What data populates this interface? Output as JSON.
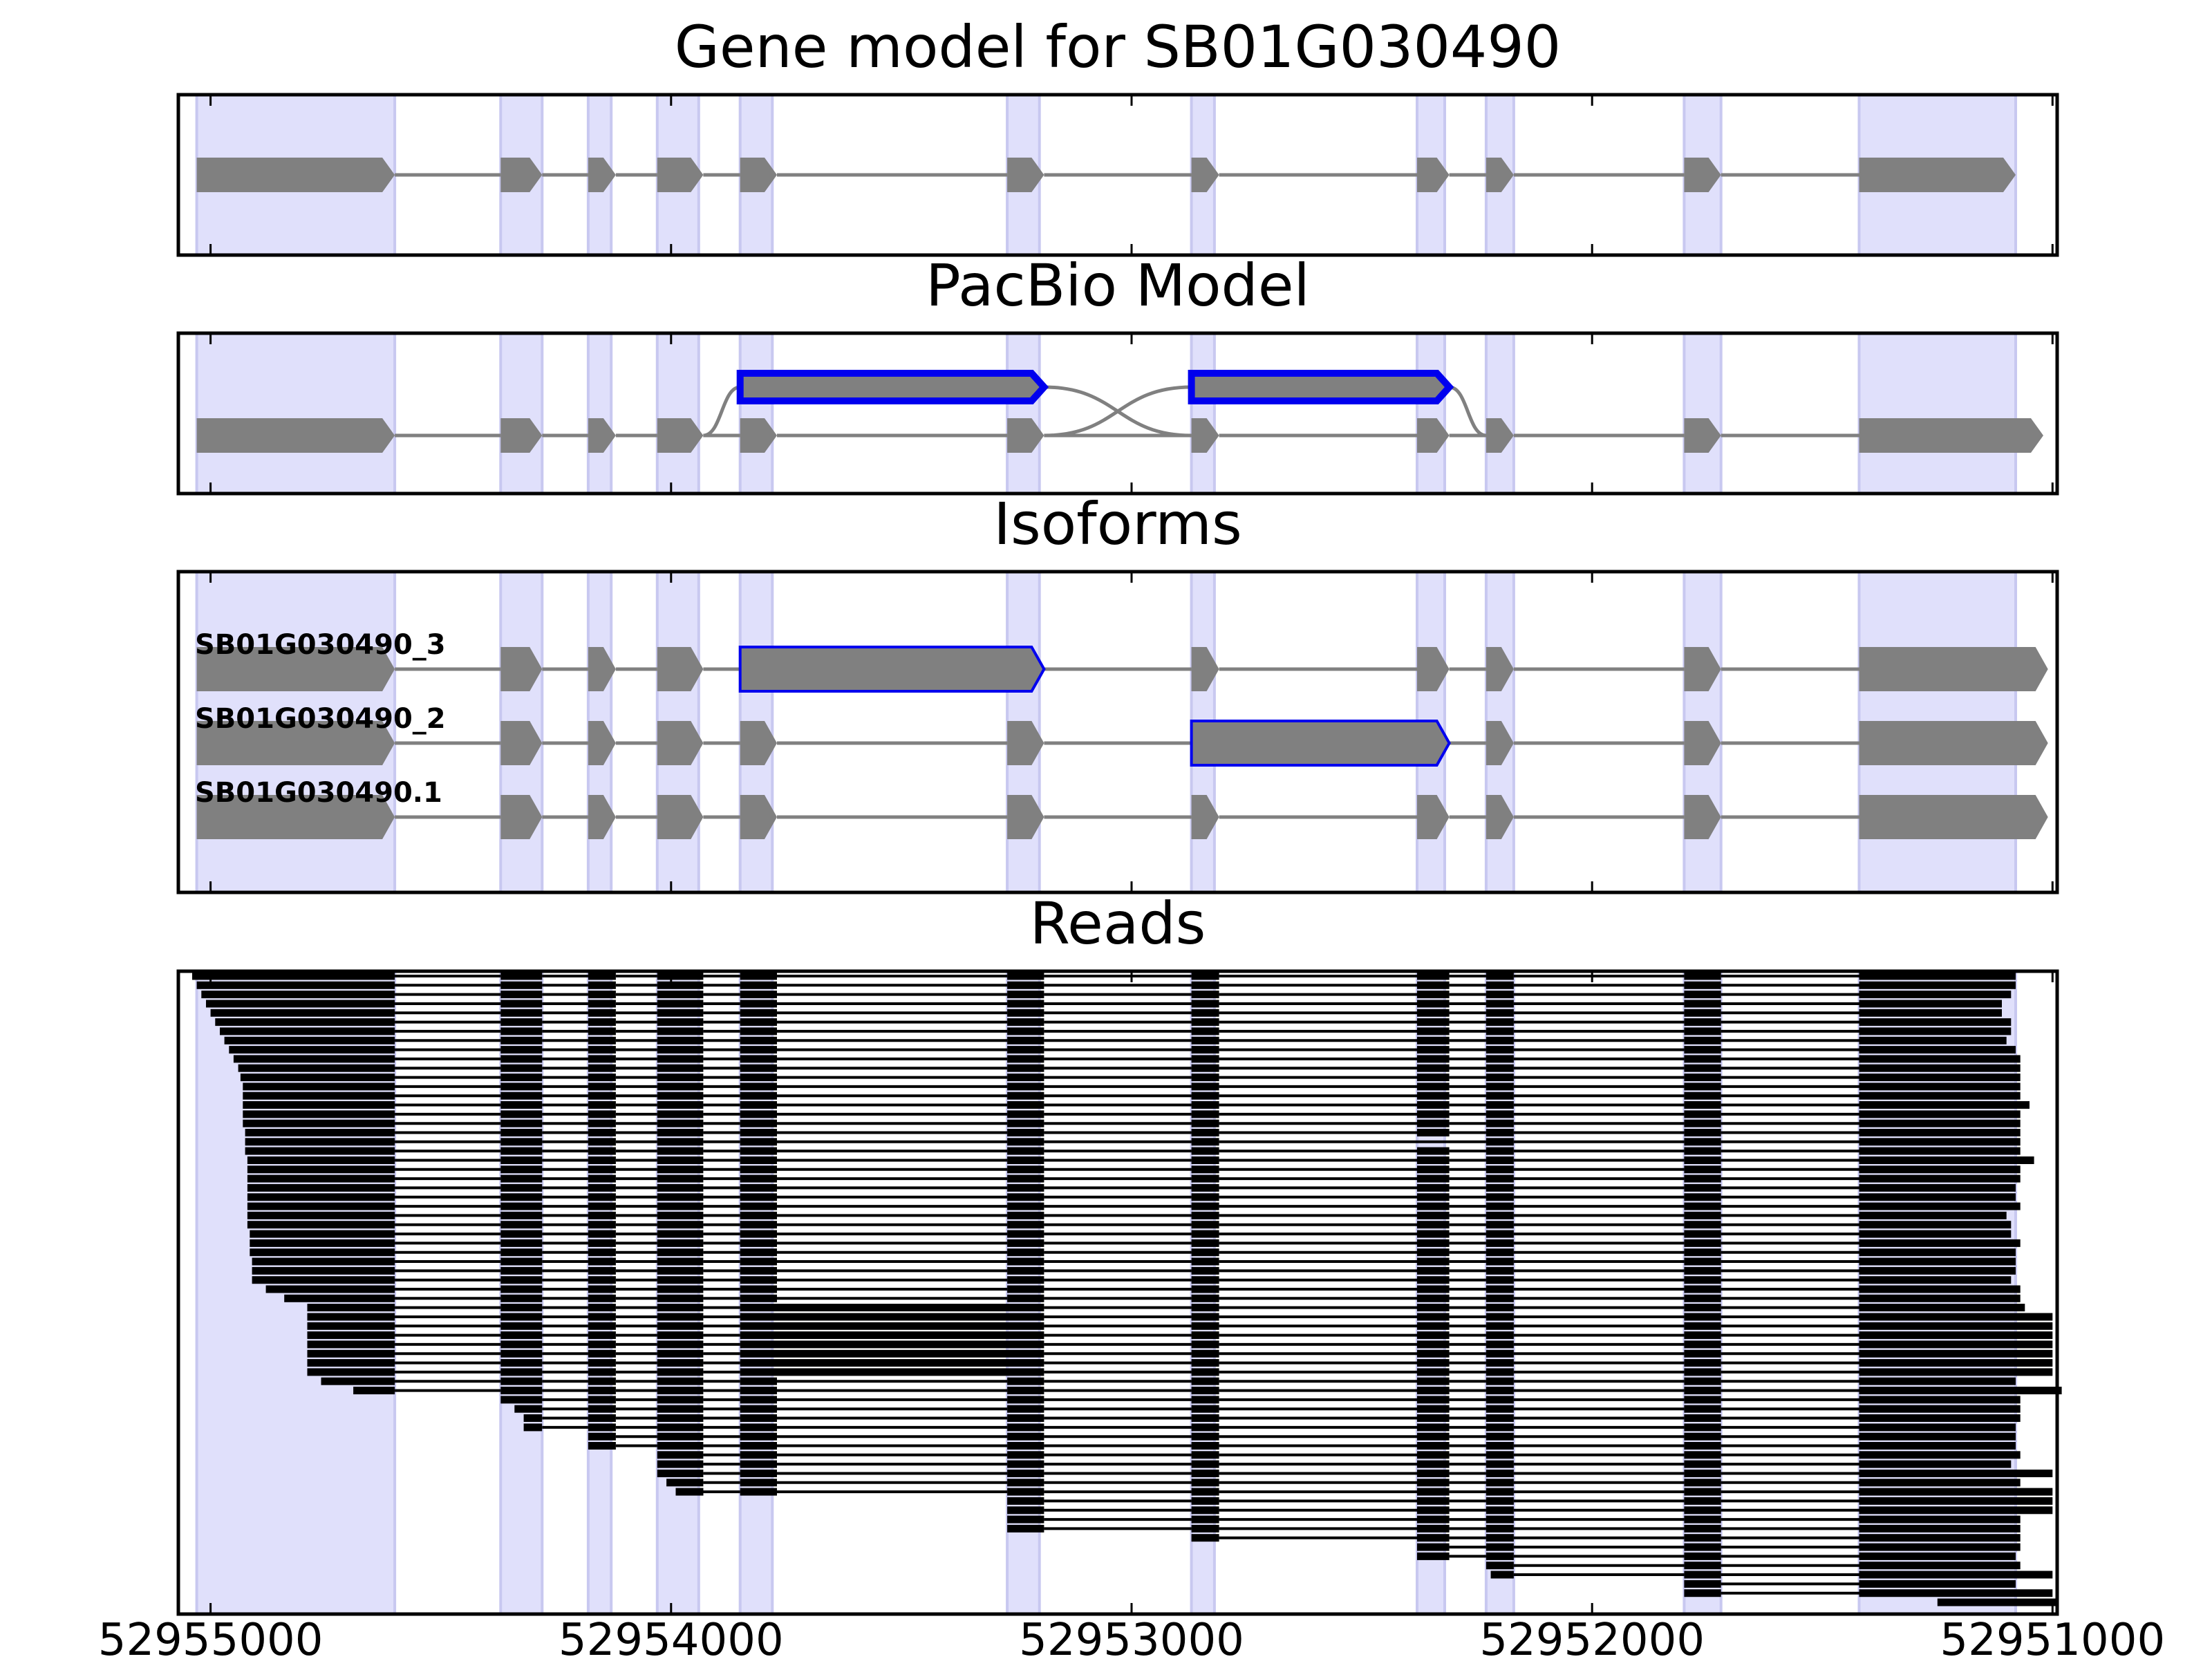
{
  "chart_data": {
    "type": "gene-structure",
    "axis": {
      "reversed": true,
      "xlim": [
        52955070,
        52950990
      ],
      "ticks": [
        52955000,
        52954000,
        52953000,
        52952000,
        52951000
      ],
      "tick_labels": [
        "52955000",
        "52954000",
        "52953000",
        "52952000",
        "52951000"
      ]
    },
    "shaded_exons": [
      [
        52955030,
        52954600
      ],
      [
        52954370,
        52954280
      ],
      [
        52954180,
        52954130
      ],
      [
        52954030,
        52953940
      ],
      [
        52953850,
        52953780
      ],
      [
        52953270,
        52953200
      ],
      [
        52952870,
        52952820
      ],
      [
        52952380,
        52952320
      ],
      [
        52952230,
        52952170
      ],
      [
        52951800,
        52951720
      ],
      [
        52951420,
        52951080
      ]
    ],
    "panels": [
      {
        "title": "Gene model for SB01G030490",
        "rows": [
          {
            "label": "",
            "exons": [
              [
                52955030,
                52954600,
                "n"
              ],
              [
                52954370,
                52954280,
                "n"
              ],
              [
                52954180,
                52954120,
                "n"
              ],
              [
                52954030,
                52953930,
                "n"
              ],
              [
                52953850,
                52953770,
                "n"
              ],
              [
                52953270,
                52953190,
                "n"
              ],
              [
                52952870,
                52952810,
                "n"
              ],
              [
                52952380,
                52952310,
                "n"
              ],
              [
                52952230,
                52952170,
                "n"
              ],
              [
                52951800,
                52951720,
                "n"
              ],
              [
                52951420,
                52951080,
                "n"
              ]
            ]
          }
        ]
      },
      {
        "title": "PacBio Model",
        "rows": [
          {
            "label": "",
            "exons": [
              [
                52955030,
                52954600,
                "n"
              ],
              [
                52954370,
                52954280,
                "n"
              ],
              [
                52954180,
                52954120,
                "n"
              ],
              [
                52954030,
                52953930,
                "n"
              ],
              [
                52953850,
                52953770,
                "n"
              ],
              [
                52953270,
                52953190,
                "n"
              ],
              [
                52952870,
                52952810,
                "n"
              ],
              [
                52952380,
                52952310,
                "n"
              ],
              [
                52952230,
                52952170,
                "n"
              ],
              [
                52951800,
                52951720,
                "n"
              ],
              [
                52951420,
                52951020,
                "n"
              ]
            ]
          }
        ],
        "alt_exons": [
          [
            52953850,
            52953190
          ],
          [
            52952870,
            52952310
          ]
        ]
      },
      {
        "title": "Isoforms",
        "rows": [
          {
            "label": "SB01G030490_3",
            "exons": [
              [
                52955030,
                52954600,
                "n"
              ],
              [
                52954370,
                52954280,
                "n"
              ],
              [
                52954180,
                52954120,
                "n"
              ],
              [
                52954030,
                52953930,
                "n"
              ],
              [
                52953850,
                52953190,
                "h"
              ],
              [
                52952870,
                52952810,
                "n"
              ],
              [
                52952380,
                52952310,
                "n"
              ],
              [
                52952230,
                52952170,
                "n"
              ],
              [
                52951800,
                52951720,
                "n"
              ],
              [
                52951420,
                52951010,
                "n"
              ]
            ]
          },
          {
            "label": "SB01G030490_2",
            "exons": [
              [
                52955030,
                52954600,
                "n"
              ],
              [
                52954370,
                52954280,
                "n"
              ],
              [
                52954180,
                52954120,
                "n"
              ],
              [
                52954030,
                52953930,
                "n"
              ],
              [
                52953850,
                52953770,
                "n"
              ],
              [
                52953270,
                52953190,
                "n"
              ],
              [
                52952870,
                52952310,
                "h"
              ],
              [
                52952230,
                52952170,
                "n"
              ],
              [
                52951800,
                52951720,
                "n"
              ],
              [
                52951420,
                52951010,
                "n"
              ]
            ]
          },
          {
            "label": "SB01G030490.1",
            "exons": [
              [
                52955030,
                52954600,
                "n"
              ],
              [
                52954370,
                52954280,
                "n"
              ],
              [
                52954180,
                52954120,
                "n"
              ],
              [
                52954030,
                52953930,
                "n"
              ],
              [
                52953850,
                52953770,
                "n"
              ],
              [
                52953270,
                52953190,
                "n"
              ],
              [
                52952870,
                52952810,
                "n"
              ],
              [
                52952380,
                52952310,
                "n"
              ],
              [
                52952230,
                52952170,
                "n"
              ],
              [
                52951800,
                52951720,
                "n"
              ],
              [
                52951420,
                52951010,
                "n"
              ]
            ]
          }
        ]
      },
      {
        "title": "Reads",
        "read_exons": [
          [
            52955030,
            52954600
          ],
          [
            52954370,
            52954280
          ],
          [
            52954180,
            52954120
          ],
          [
            52954030,
            52953930
          ],
          [
            52953850,
            52953770
          ],
          [
            52953270,
            52953190
          ],
          [
            52952870,
            52952810
          ],
          [
            52952380,
            52952310
          ],
          [
            52952230,
            52952170
          ],
          [
            52951800,
            52951720
          ],
          [
            52951420,
            52951080
          ]
        ],
        "reads": [
          {
            "start": 52955040,
            "end": 52951080,
            "skip": ""
          },
          {
            "start": 52955030,
            "end": 52951080,
            "skip": ""
          },
          {
            "start": 52955020,
            "end": 52951090,
            "skip": ""
          },
          {
            "start": 52955010,
            "end": 52951110,
            "skip": ""
          },
          {
            "start": 52955000,
            "end": 52951110,
            "skip": ""
          },
          {
            "start": 52954990,
            "end": 52951090,
            "skip": ""
          },
          {
            "start": 52954980,
            "end": 52951090,
            "skip": ""
          },
          {
            "start": 52954970,
            "end": 52951100,
            "skip": ""
          },
          {
            "start": 52954960,
            "end": 52951080,
            "skip": ""
          },
          {
            "start": 52954950,
            "end": 52951070,
            "skip": ""
          },
          {
            "start": 52954940,
            "end": 52951070,
            "skip": ""
          },
          {
            "start": 52954935,
            "end": 52951070,
            "skip": ""
          },
          {
            "start": 52954930,
            "end": 52951070,
            "skip": ""
          },
          {
            "start": 52954930,
            "end": 52951070,
            "skip": ""
          },
          {
            "start": 52954930,
            "end": 52951050,
            "skip": ""
          },
          {
            "start": 52954930,
            "end": 52951070,
            "skip": ""
          },
          {
            "start": 52954930,
            "end": 52951070,
            "skip": ""
          },
          {
            "start": 52954925,
            "end": 52951070,
            "skip": ""
          },
          {
            "start": 52954925,
            "end": 52951070,
            "skip": "b"
          },
          {
            "start": 52954925,
            "end": 52951070,
            "skip": ""
          },
          {
            "start": 52954920,
            "end": 52951040,
            "skip": ""
          },
          {
            "start": 52954920,
            "end": 52951070,
            "skip": ""
          },
          {
            "start": 52954920,
            "end": 52951070,
            "skip": ""
          },
          {
            "start": 52954920,
            "end": 52951080,
            "skip": ""
          },
          {
            "start": 52954920,
            "end": 52951080,
            "skip": ""
          },
          {
            "start": 52954920,
            "end": 52951070,
            "skip": ""
          },
          {
            "start": 52954920,
            "end": 52951100,
            "skip": ""
          },
          {
            "start": 52954920,
            "end": 52951090,
            "skip": ""
          },
          {
            "start": 52954915,
            "end": 52951090,
            "skip": ""
          },
          {
            "start": 52954915,
            "end": 52951070,
            "skip": ""
          },
          {
            "start": 52954915,
            "end": 52951080,
            "skip": ""
          },
          {
            "start": 52954910,
            "end": 52951080,
            "skip": ""
          },
          {
            "start": 52954910,
            "end": 52951080,
            "skip": ""
          },
          {
            "start": 52954910,
            "end": 52951090,
            "skip": ""
          },
          {
            "start": 52954880,
            "end": 52951070,
            "skip": ""
          },
          {
            "start": 52954840,
            "end": 52951070,
            "skip": ""
          },
          {
            "start": 52954790,
            "end": 52951060,
            "skip": "a"
          },
          {
            "start": 52954790,
            "end": 52951000,
            "skip": "a"
          },
          {
            "start": 52954790,
            "end": 52951000,
            "skip": "a"
          },
          {
            "start": 52954790,
            "end": 52951000,
            "skip": "a"
          },
          {
            "start": 52954790,
            "end": 52951000,
            "skip": "a"
          },
          {
            "start": 52954790,
            "end": 52951000,
            "skip": "a"
          },
          {
            "start": 52954790,
            "end": 52951000,
            "skip": "a"
          },
          {
            "start": 52954790,
            "end": 52951000,
            "skip": "a"
          },
          {
            "start": 52954760,
            "end": 52951080,
            "skip": ""
          },
          {
            "start": 52954690,
            "end": 52950980,
            "skip": ""
          },
          {
            "start": 52954370,
            "end": 52951070,
            "skip": ""
          },
          {
            "start": 52954340,
            "end": 52951070,
            "skip": ""
          },
          {
            "start": 52954320,
            "end": 52951070,
            "skip": ""
          },
          {
            "start": 52954320,
            "end": 52951080,
            "skip": ""
          },
          {
            "start": 52954180,
            "end": 52951080,
            "skip": ""
          },
          {
            "start": 52954180,
            "end": 52951080,
            "skip": ""
          },
          {
            "start": 52954040,
            "end": 52951070,
            "skip": ""
          },
          {
            "start": 52954030,
            "end": 52951090,
            "skip": ""
          },
          {
            "start": 52954030,
            "end": 52951000,
            "skip": ""
          },
          {
            "start": 52954010,
            "end": 52951070,
            "skip": ""
          },
          {
            "start": 52953990,
            "end": 52951000,
            "skip": ""
          },
          {
            "start": 52953700,
            "end": 52951000,
            "skip": ""
          },
          {
            "start": 52953670,
            "end": 52951000,
            "skip": ""
          },
          {
            "start": 52953270,
            "end": 52951070,
            "skip": ""
          },
          {
            "start": 52953270,
            "end": 52951070,
            "skip": ""
          },
          {
            "start": 52952870,
            "end": 52951070,
            "skip": ""
          },
          {
            "start": 52952710,
            "end": 52951070,
            "skip": ""
          },
          {
            "start": 52952380,
            "end": 52951080,
            "skip": ""
          },
          {
            "start": 52952230,
            "end": 52951070,
            "skip": ""
          },
          {
            "start": 52952220,
            "end": 52951000,
            "skip": ""
          },
          {
            "start": 52951800,
            "end": 52951080,
            "skip": ""
          },
          {
            "start": 52951800,
            "end": 52951000,
            "skip": ""
          },
          {
            "start": 52951250,
            "end": 52950990,
            "skip": ""
          }
        ]
      }
    ]
  }
}
